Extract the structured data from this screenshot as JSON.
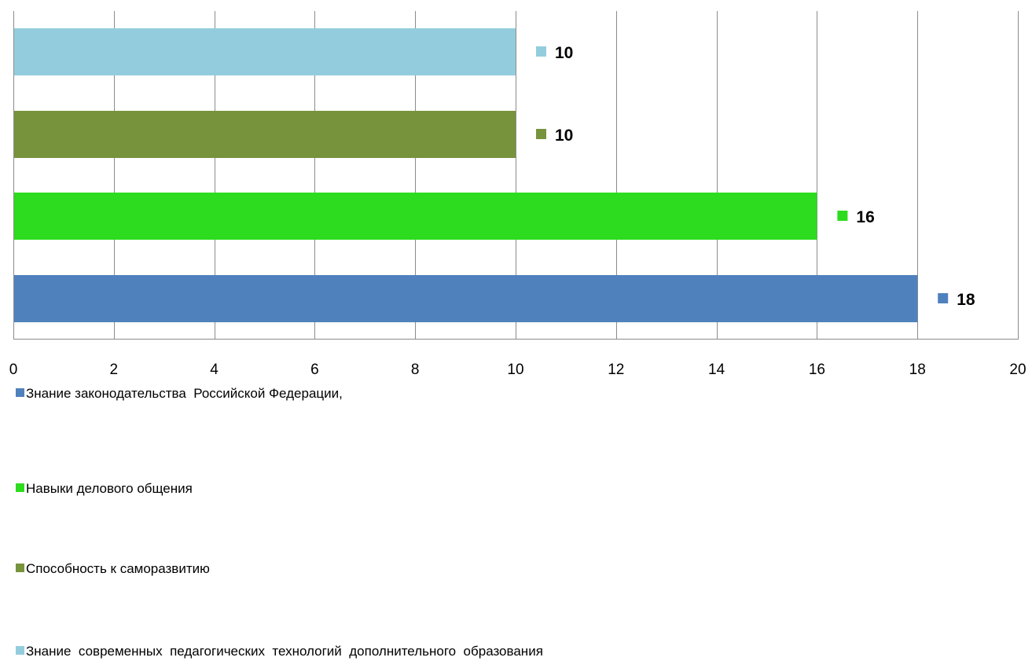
{
  "chart_data": {
    "type": "bar",
    "orientation": "horizontal",
    "xlim": [
      0,
      20
    ],
    "x_ticks": [
      "0",
      "2",
      "4",
      "6",
      "8",
      "10",
      "12",
      "14",
      "16",
      "18",
      "20"
    ],
    "grid": "vertical",
    "legend_position": "bottom",
    "data_labels": true,
    "series": [
      {
        "name": "Знание законодательства  Российской Федерации,",
        "value": 18,
        "label": "18",
        "color": "#4f81bd"
      },
      {
        "name": "Навыки делового общения",
        "value": 16,
        "label": "16",
        "color": "#2ddc1e"
      },
      {
        "name": "Способность к саморазвитию",
        "value": 10,
        "label": "10",
        "color": "#77933c"
      },
      {
        "name": "Знание  современных  педагогических  технологий  дополнительного  образования",
        "value": 10,
        "label": "10",
        "color": "#93cddd"
      }
    ]
  }
}
